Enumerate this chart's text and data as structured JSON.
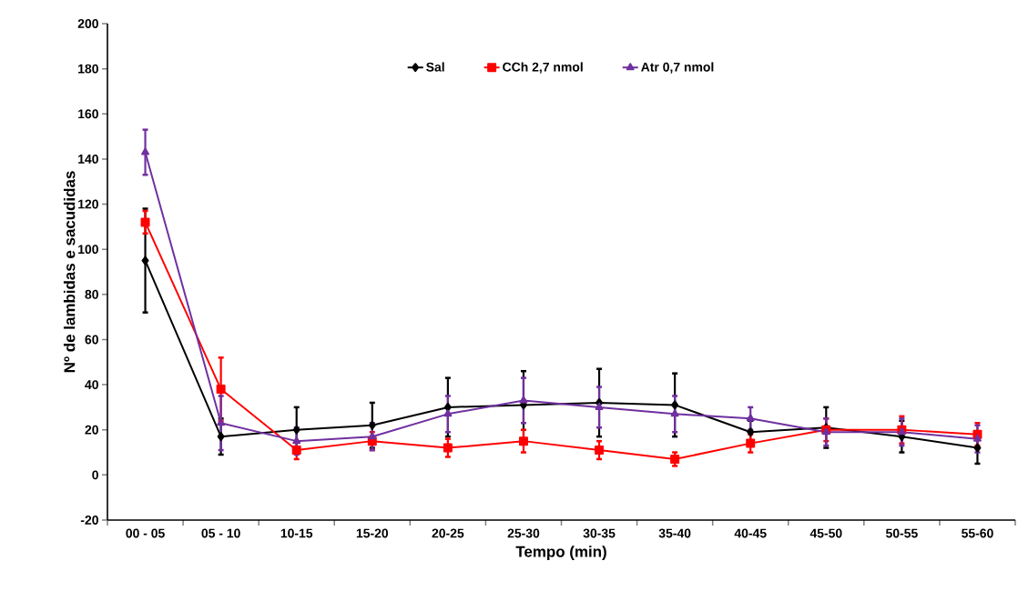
{
  "chart_data": {
    "type": "line",
    "xlabel": "Tempo (min)",
    "ylabel": "Nº de lambidas e sacudidas",
    "categories": [
      "00 - 05",
      "05 - 10",
      "10-15",
      "15-20",
      "20-25",
      "25-30",
      "30-35",
      "35-40",
      "40-45",
      "45-50",
      "50-55",
      "55-60"
    ],
    "ylim": [
      -20,
      200
    ],
    "yticks": [
      -20,
      0,
      20,
      40,
      60,
      80,
      100,
      120,
      140,
      160,
      180,
      200
    ],
    "grid": false,
    "legend": "top",
    "series": [
      {
        "name": "Sal",
        "color": "#000000",
        "marker": "diamond",
        "values": [
          95,
          17,
          20,
          22,
          30,
          31,
          32,
          31,
          19,
          21,
          17,
          12
        ],
        "errors": [
          23,
          8,
          10,
          10,
          13,
          15,
          15,
          14,
          5,
          9,
          7,
          7
        ]
      },
      {
        "name": "CCh 2,7 nmol",
        "color": "#ff0000",
        "marker": "square",
        "values": [
          112,
          38,
          11,
          15,
          12,
          15,
          11,
          7,
          14,
          20,
          20,
          18
        ],
        "errors": [
          5,
          14,
          4,
          4,
          4,
          5,
          4,
          3,
          4,
          5,
          6,
          5
        ]
      },
      {
        "name": "Atr 0,7 nmol",
        "color": "#7030a0",
        "marker": "triangle",
        "values": [
          143,
          23,
          15,
          17,
          27,
          33,
          30,
          27,
          25,
          19,
          19,
          16
        ],
        "errors": [
          10,
          12,
          6,
          6,
          8,
          10,
          9,
          8,
          5,
          6,
          6,
          6
        ]
      }
    ]
  }
}
